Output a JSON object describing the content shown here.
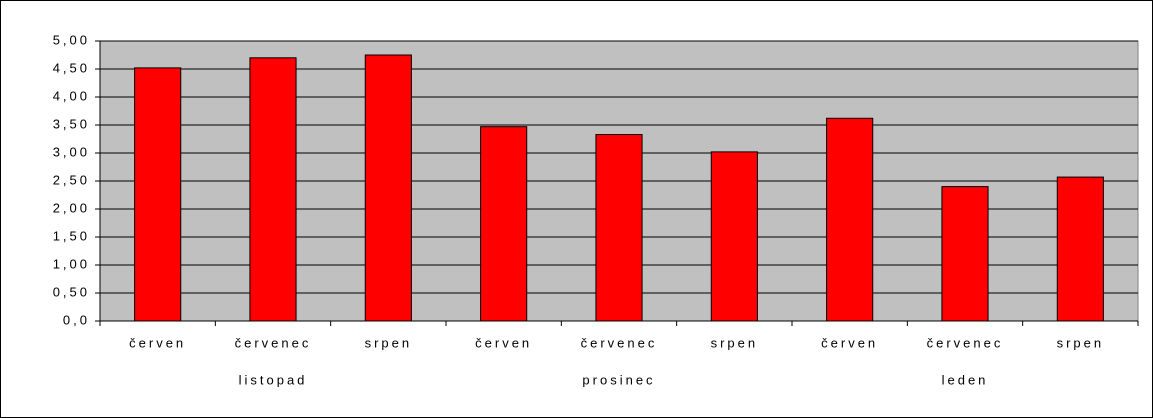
{
  "chart_data": {
    "type": "bar",
    "categories": [
      "červen",
      "červenec",
      "srpen",
      "červen",
      "červenec",
      "srpen",
      "červen",
      "červenec",
      "srpen"
    ],
    "group_labels": [
      "listopad",
      "prosinec",
      "leden"
    ],
    "values": [
      4.52,
      4.7,
      4.75,
      3.47,
      3.33,
      3.02,
      3.62,
      2.4,
      2.57
    ],
    "color": "#ff0000",
    "ylim": [
      0,
      5
    ],
    "yticks": [
      {
        "value": 0,
        "label": "0,0"
      },
      {
        "value": 0.5,
        "label": "0,50"
      },
      {
        "value": 1,
        "label": "1,00"
      },
      {
        "value": 1.5,
        "label": "1,50"
      },
      {
        "value": 2,
        "label": "2,00"
      },
      {
        "value": 2.5,
        "label": "2,50"
      },
      {
        "value": 3,
        "label": "3,00"
      },
      {
        "value": 3.5,
        "label": "3,50"
      },
      {
        "value": 4,
        "label": "4,00"
      },
      {
        "value": 4.5,
        "label": "4,50"
      },
      {
        "value": 5,
        "label": "5,00"
      }
    ],
    "grid": true
  }
}
